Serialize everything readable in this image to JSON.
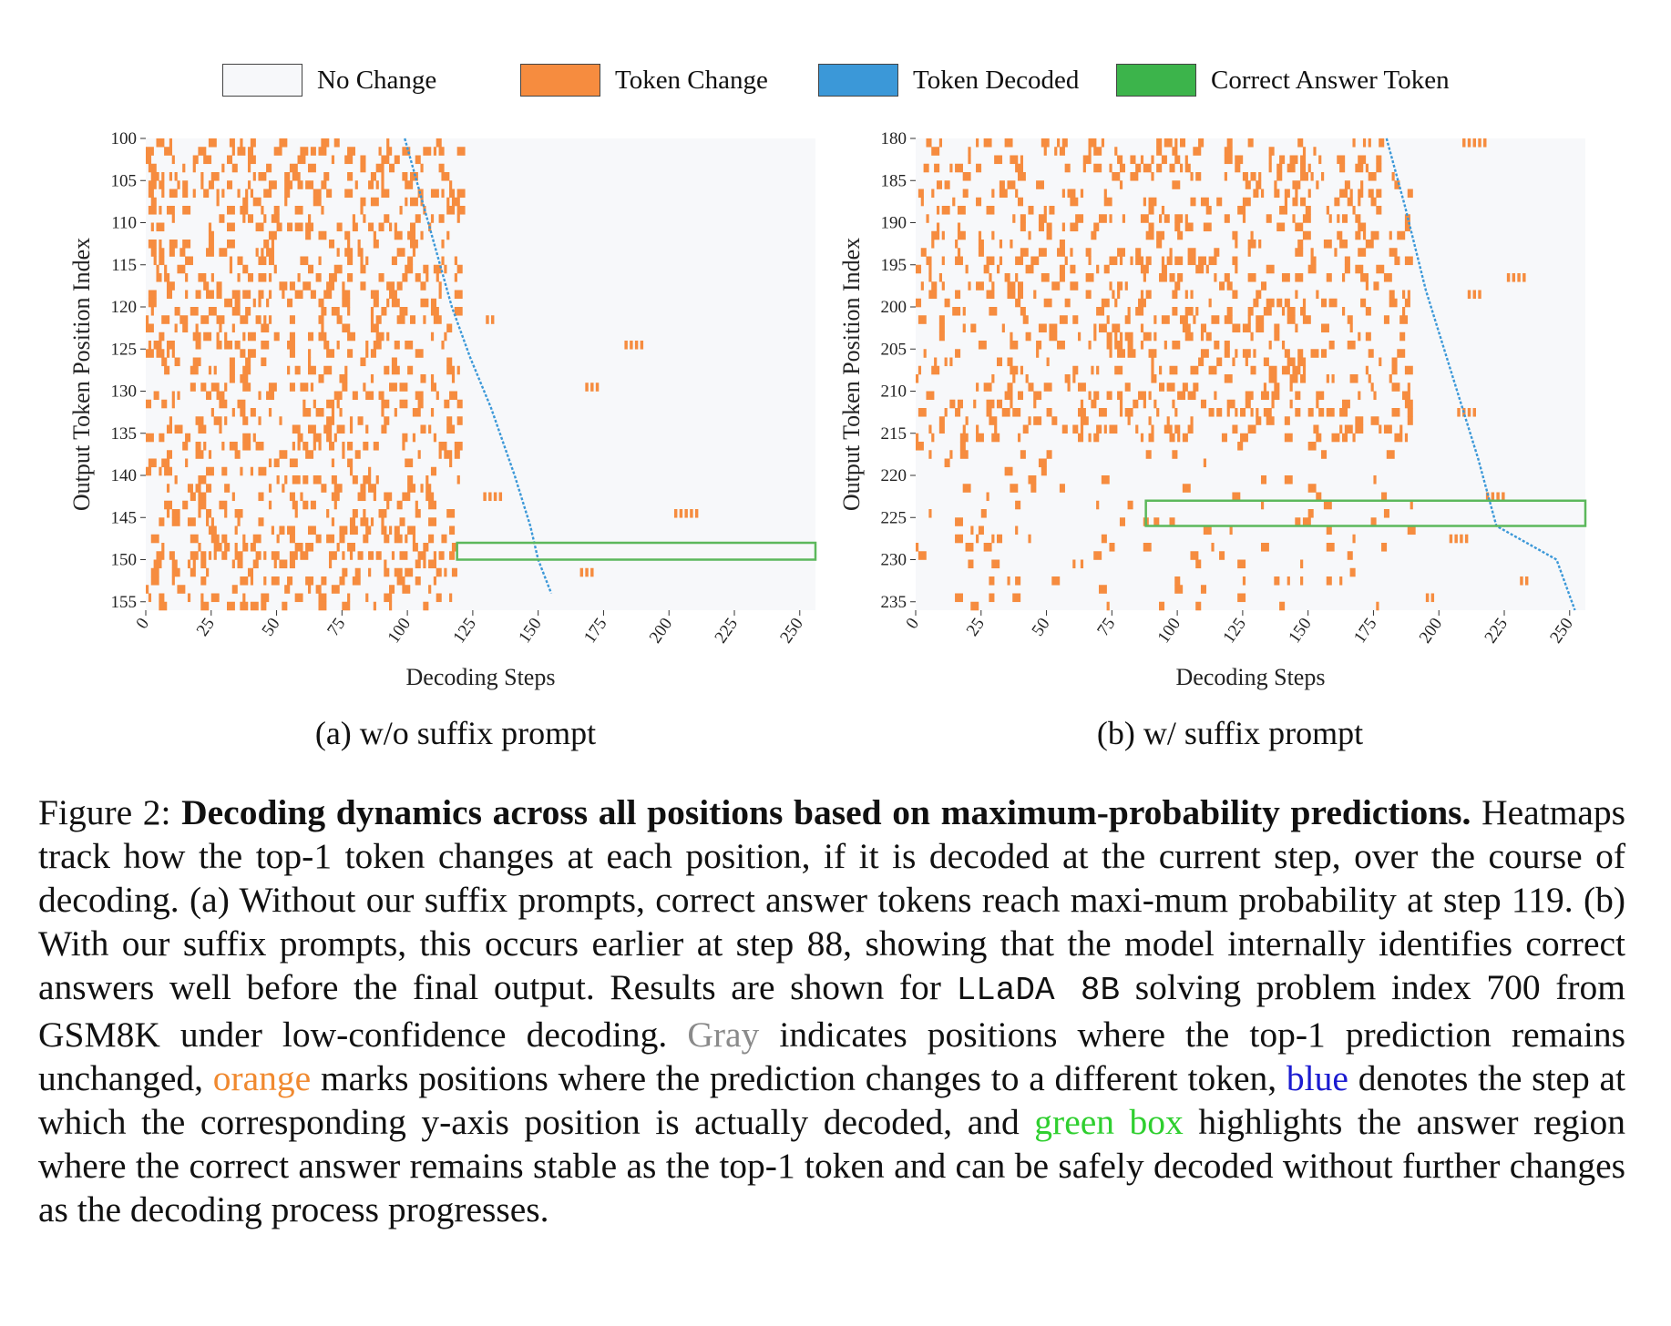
{
  "legend": {
    "items": [
      {
        "label": "No Change",
        "color": "#f7f8fa"
      },
      {
        "label": "Token Change",
        "color": "#f68c3f"
      },
      {
        "label": "Token Decoded",
        "color": "#3b98d8"
      },
      {
        "label": "Correct Answer Token",
        "color": "#3cb44b"
      }
    ]
  },
  "colors": {
    "background": "#f7f8fa",
    "change": "#f68c3f",
    "decoded": "#3b98d8",
    "answer_box": "#5cb85c"
  },
  "chart_data": [
    {
      "type": "heatmap",
      "subcaption": "(a) w/o suffix prompt",
      "xlabel": "Decoding Steps",
      "ylabel": "Output Token Position Index",
      "xlim": [
        0,
        256
      ],
      "ylim": [
        100,
        156
      ],
      "xticks": [
        0,
        25,
        50,
        75,
        100,
        125,
        150,
        175,
        200,
        225,
        250
      ],
      "yticks": [
        100,
        105,
        110,
        115,
        120,
        125,
        130,
        135,
        140,
        145,
        150,
        155
      ],
      "decoded_path": [
        [
          99,
          100
        ],
        [
          108,
          110
        ],
        [
          117,
          120
        ],
        [
          124,
          126
        ],
        [
          132,
          132
        ],
        [
          141,
          140
        ],
        [
          147,
          146
        ],
        [
          150,
          150
        ],
        [
          155,
          154
        ]
      ],
      "answer_box": {
        "step_start": 119,
        "step_end": 256,
        "pos_start": 148,
        "pos_end": 150
      },
      "change_density": "high in steps 0-120 for positions 100-155; sparse beyond step 120"
    },
    {
      "type": "heatmap",
      "subcaption": "(b) w/ suffix prompt",
      "xlabel": "Decoding Steps",
      "ylabel": "Output Token Position Index",
      "xlim": [
        0,
        256
      ],
      "ylim": [
        180,
        236
      ],
      "xticks": [
        0,
        25,
        50,
        75,
        100,
        125,
        150,
        175,
        200,
        225,
        250
      ],
      "yticks": [
        180,
        185,
        190,
        195,
        200,
        205,
        210,
        215,
        220,
        225,
        230,
        235
      ],
      "decoded_path": [
        [
          180,
          180
        ],
        [
          187,
          188
        ],
        [
          195,
          198
        ],
        [
          205,
          208
        ],
        [
          215,
          218
        ],
        [
          222,
          226
        ],
        [
          245,
          230
        ],
        [
          252,
          236
        ]
      ],
      "answer_box": {
        "step_start": 88,
        "step_end": 256,
        "pos_start": 223,
        "pos_end": 226
      },
      "change_density": "high in steps 0-190 for positions 180-215; sparse beyond"
    }
  ],
  "caption": {
    "label": "Figure 2:",
    "title": "Decoding dynamics across all positions based on maximum-probability predictions.",
    "p1": "Heatmaps track how the top-1 token changes at each position, if it is decoded at the current step, over the course of decoding.  (a) Without our suffix prompts, correct answer tokens reach maxi-mum probability at step 119.  (b) With our suffix prompts, this occurs earlier at step 88, showing that the model internally identifies correct answers well before the final output.  Results are shown for",
    "model": "LLaDA 8B",
    "p2": "solving problem index 700 from GSM8K under low-confidence decoding.",
    "gray": "Gray",
    "p3": "indicates positions where the top-1 prediction remains unchanged,",
    "orange": "orange",
    "p4": "marks positions where the prediction changes to a different token,",
    "blue": "blue",
    "p5": "denotes the step at which the corresponding y-axis position is actually decoded, and",
    "green": "green box",
    "p6": "highlights the answer region where the correct answer remains stable as the top-1 token and can be safely decoded without further changes as the decoding process progresses."
  }
}
